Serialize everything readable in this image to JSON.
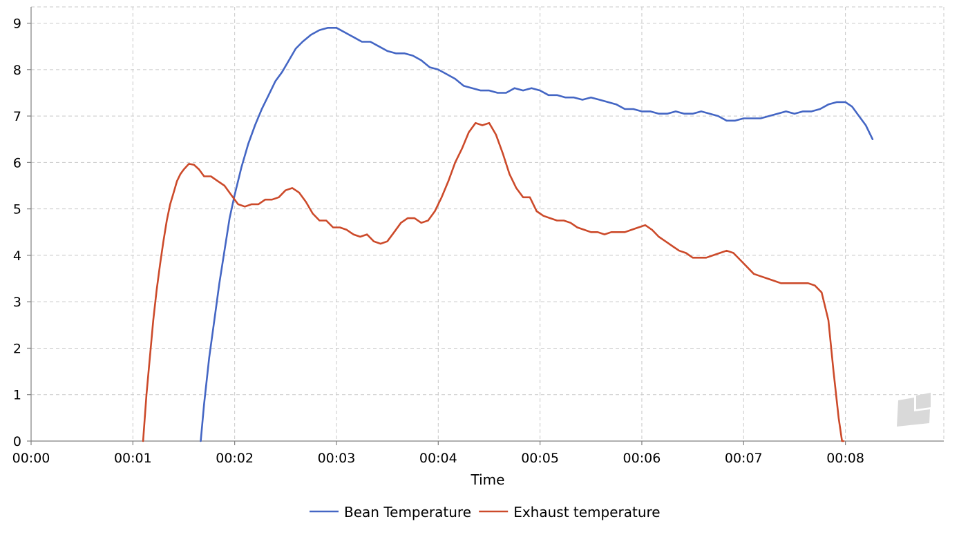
{
  "chart_data": {
    "type": "line",
    "title": "",
    "xlabel": "Time",
    "ylabel": "",
    "xlim": [
      0,
      538
    ],
    "ylim": [
      0,
      9.35
    ],
    "x_ticks": [
      {
        "value": 0,
        "label": "00:00"
      },
      {
        "value": 60,
        "label": "00:01"
      },
      {
        "value": 120,
        "label": "00:02"
      },
      {
        "value": 180,
        "label": "00:03"
      },
      {
        "value": 240,
        "label": "00:04"
      },
      {
        "value": 300,
        "label": "00:05"
      },
      {
        "value": 360,
        "label": "00:06"
      },
      {
        "value": 420,
        "label": "00:07"
      },
      {
        "value": 480,
        "label": "00:08"
      }
    ],
    "y_ticks": [
      {
        "value": 0,
        "label": "0"
      },
      {
        "value": 1,
        "label": "1"
      },
      {
        "value": 2,
        "label": "2"
      },
      {
        "value": 3,
        "label": "3"
      },
      {
        "value": 4,
        "label": "4"
      },
      {
        "value": 5,
        "label": "5"
      },
      {
        "value": 6,
        "label": "6"
      },
      {
        "value": 7,
        "label": "7"
      },
      {
        "value": 8,
        "label": "8"
      },
      {
        "value": 9,
        "label": "9"
      }
    ],
    "grid": true,
    "legend_position": "bottom",
    "series": [
      {
        "name": "Bean Temperature",
        "color": "#4466c4",
        "x": [
          100,
          102,
          105,
          108,
          111,
          114,
          117,
          120,
          124,
          128,
          132,
          136,
          140,
          144,
          148,
          152,
          156,
          160,
          165,
          170,
          175,
          180,
          185,
          190,
          195,
          200,
          205,
          210,
          215,
          220,
          225,
          230,
          235,
          240,
          245,
          250,
          255,
          260,
          265,
          270,
          275,
          280,
          285,
          290,
          295,
          300,
          305,
          310,
          315,
          320,
          325,
          330,
          335,
          340,
          345,
          350,
          355,
          360,
          365,
          370,
          375,
          380,
          385,
          390,
          395,
          400,
          405,
          410,
          415,
          420,
          425,
          430,
          435,
          440,
          445,
          450,
          455,
          460,
          465,
          470,
          475,
          480,
          484,
          488,
          492,
          496
        ],
        "values": [
          0,
          0.8,
          1.8,
          2.6,
          3.4,
          4.1,
          4.8,
          5.3,
          5.9,
          6.4,
          6.8,
          7.15,
          7.45,
          7.75,
          7.95,
          8.2,
          8.45,
          8.6,
          8.75,
          8.85,
          8.9,
          8.9,
          8.8,
          8.7,
          8.6,
          8.6,
          8.5,
          8.4,
          8.35,
          8.35,
          8.3,
          8.2,
          8.05,
          8.0,
          7.9,
          7.8,
          7.65,
          7.6,
          7.55,
          7.55,
          7.5,
          7.5,
          7.6,
          7.55,
          7.6,
          7.55,
          7.45,
          7.45,
          7.4,
          7.4,
          7.35,
          7.4,
          7.35,
          7.3,
          7.25,
          7.15,
          7.15,
          7.1,
          7.1,
          7.05,
          7.05,
          7.1,
          7.05,
          7.05,
          7.1,
          7.05,
          7.0,
          6.9,
          6.9,
          6.95,
          6.95,
          6.95,
          7.0,
          7.05,
          7.1,
          7.05,
          7.1,
          7.1,
          7.15,
          7.25,
          7.3,
          7.3,
          7.2,
          7.0,
          6.8,
          6.5
        ]
      },
      {
        "name": "Exhaust temperature",
        "color": "#cc4a2a",
        "x": [
          66,
          68,
          70,
          72,
          74,
          76,
          78,
          80,
          82,
          84,
          86,
          88,
          90,
          93,
          96,
          99,
          102,
          106,
          110,
          114,
          118,
          122,
          126,
          130,
          134,
          138,
          142,
          146,
          150,
          154,
          158,
          162,
          166,
          170,
          174,
          178,
          182,
          186,
          190,
          194,
          198,
          202,
          206,
          210,
          214,
          218,
          222,
          226,
          230,
          234,
          238,
          242,
          246,
          250,
          254,
          258,
          262,
          266,
          270,
          274,
          278,
          282,
          286,
          290,
          294,
          298,
          302,
          306,
          310,
          314,
          318,
          322,
          326,
          330,
          334,
          338,
          342,
          346,
          350,
          354,
          358,
          362,
          366,
          370,
          374,
          378,
          382,
          386,
          390,
          394,
          398,
          402,
          406,
          410,
          414,
          418,
          422,
          426,
          430,
          434,
          438,
          442,
          446,
          450,
          454,
          458,
          462,
          466,
          470,
          473,
          476,
          478,
          479
        ],
        "values": [
          0,
          1.0,
          1.8,
          2.6,
          3.25,
          3.8,
          4.3,
          4.75,
          5.1,
          5.35,
          5.6,
          5.75,
          5.85,
          5.97,
          5.95,
          5.85,
          5.7,
          5.7,
          5.6,
          5.5,
          5.3,
          5.1,
          5.05,
          5.1,
          5.1,
          5.2,
          5.2,
          5.25,
          5.4,
          5.45,
          5.35,
          5.15,
          4.9,
          4.75,
          4.75,
          4.6,
          4.6,
          4.55,
          4.45,
          4.4,
          4.45,
          4.3,
          4.25,
          4.3,
          4.5,
          4.7,
          4.8,
          4.8,
          4.7,
          4.75,
          4.95,
          5.25,
          5.6,
          6.0,
          6.3,
          6.65,
          6.85,
          6.8,
          6.85,
          6.6,
          6.2,
          5.75,
          5.45,
          5.25,
          5.25,
          4.95,
          4.85,
          4.8,
          4.75,
          4.75,
          4.7,
          4.6,
          4.55,
          4.5,
          4.5,
          4.45,
          4.5,
          4.5,
          4.5,
          4.55,
          4.6,
          4.65,
          4.55,
          4.4,
          4.3,
          4.2,
          4.1,
          4.05,
          3.95,
          3.95,
          3.95,
          4.0,
          4.05,
          4.1,
          4.05,
          3.9,
          3.75,
          3.6,
          3.55,
          3.5,
          3.45,
          3.4,
          3.4,
          3.4,
          3.4,
          3.4,
          3.35,
          3.2,
          2.6,
          1.5,
          0.5,
          0,
          0
        ]
      }
    ]
  }
}
